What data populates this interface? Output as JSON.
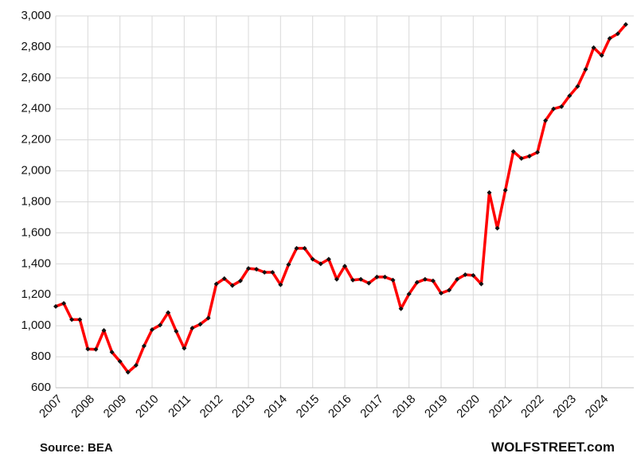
{
  "chart_data": {
    "type": "line",
    "x": [
      2007,
      2007.25,
      2007.5,
      2007.75,
      2008,
      2008.25,
      2008.5,
      2008.75,
      2009,
      2009.25,
      2009.5,
      2009.75,
      2010,
      2010.25,
      2010.5,
      2010.75,
      2011,
      2011.25,
      2011.5,
      2011.75,
      2012,
      2012.25,
      2012.5,
      2012.75,
      2013,
      2013.25,
      2013.5,
      2013.75,
      2014,
      2014.25,
      2014.5,
      2014.75,
      2015,
      2015.25,
      2015.5,
      2015.75,
      2016,
      2016.25,
      2016.5,
      2016.75,
      2017,
      2017.25,
      2017.5,
      2017.75,
      2018,
      2018.25,
      2018.5,
      2018.75,
      2019,
      2019.25,
      2019.5,
      2019.75,
      2020,
      2020.25,
      2020.5,
      2020.75,
      2021,
      2021.25,
      2021.5,
      2021.75,
      2022,
      2022.25,
      2022.5,
      2022.75,
      2023,
      2023.25,
      2023.5,
      2023.75,
      2024,
      2024.25,
      2024.5,
      2024.75
    ],
    "series": [
      {
        "color": "#ff0000",
        "marker_color": "#111111",
        "values": [
          1125,
          1145,
          1040,
          1040,
          850,
          848,
          970,
          830,
          770,
          700,
          745,
          870,
          975,
          1005,
          1085,
          965,
          855,
          985,
          1010,
          1050,
          1270,
          1305,
          1260,
          1290,
          1370,
          1365,
          1345,
          1345,
          1265,
          1395,
          1500,
          1500,
          1430,
          1400,
          1430,
          1300,
          1385,
          1295,
          1300,
          1275,
          1315,
          1315,
          1295,
          1110,
          1205,
          1280,
          1300,
          1290,
          1210,
          1230,
          1300,
          1330,
          1325,
          1270,
          1860,
          1630,
          1875,
          2125,
          2080,
          2095,
          2120,
          2325,
          2400,
          2415,
          2485,
          2545,
          2655,
          2795,
          2745,
          2855,
          2885,
          2945
        ]
      }
    ],
    "xlim": [
      2007,
      2025
    ],
    "xticks": [
      2007,
      2008,
      2009,
      2010,
      2011,
      2012,
      2013,
      2014,
      2015,
      2016,
      2017,
      2018,
      2019,
      2020,
      2021,
      2022,
      2023,
      2024
    ],
    "ylim": [
      600,
      3000
    ],
    "yticks": [
      600,
      800,
      {
        "value": 1000,
        "label": "1,000"
      },
      {
        "value": 1200,
        "label": "1,200"
      },
      {
        "value": 1400,
        "label": "1,400"
      },
      {
        "value": 1600,
        "label": "1,600"
      },
      {
        "value": 1800,
        "label": "1,800"
      },
      {
        "value": 2000,
        "label": "2,000"
      },
      {
        "value": 2200,
        "label": "2,200"
      },
      {
        "value": 2400,
        "label": "2,400"
      },
      {
        "value": 2600,
        "label": "2,600"
      },
      {
        "value": 2800,
        "label": "2,800"
      },
      {
        "value": 3000,
        "label": "3,000"
      }
    ],
    "grid": true,
    "source": "Source: BEA",
    "watermark": "WOLFSTREET.com"
  }
}
